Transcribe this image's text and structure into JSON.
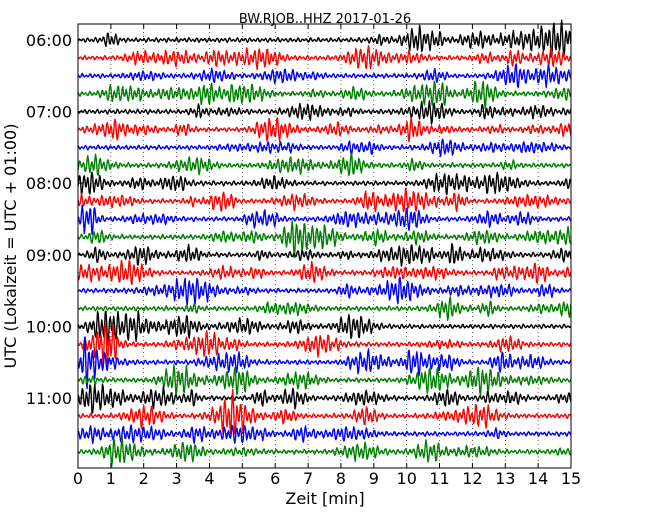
{
  "chart_data": {
    "type": "line",
    "title": "BW.RJOB..HHZ 2017-01-26",
    "xlabel": "Zeit  [min]",
    "ylabel": "UTC (Lokalzeit = UTC + 01:00)",
    "xlim": [
      0,
      15
    ],
    "x_ticks": [
      "0",
      "1",
      "2",
      "3",
      "4",
      "5",
      "6",
      "7",
      "8",
      "9",
      "10",
      "11",
      "12",
      "13",
      "14",
      "15"
    ],
    "y_ticks": [
      "06:00",
      "07:00",
      "08:00",
      "09:00",
      "10:00",
      "11:00"
    ],
    "traces_per_hour": 4,
    "trace_count": 24,
    "trace_colors": [
      "#000000",
      "#ff0000",
      "#0000ff",
      "#008000"
    ],
    "grid": true
  }
}
